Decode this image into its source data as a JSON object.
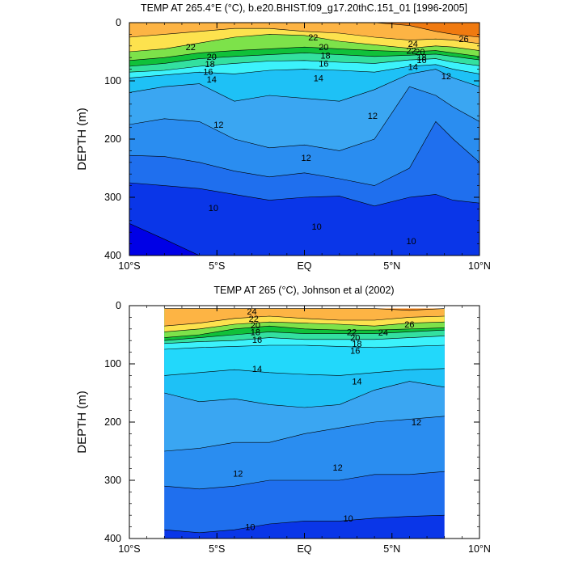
{
  "chart_data": [
    {
      "type": "contour",
      "title": "TEMP AT 265.4°E (°C), b.e20.BHIST.f09_g17.20thC.151_01 [1996-2005]",
      "ylabel": "DEPTH (m)",
      "xlim": [
        -10,
        10
      ],
      "ylim": [
        400,
        0
      ],
      "y_reversed": true,
      "x_ticks": [
        {
          "value": -10,
          "label": "10°S"
        },
        {
          "value": -5,
          "label": "5°S"
        },
        {
          "value": 0,
          "label": "EQ"
        },
        {
          "value": 5,
          "label": "5°N"
        },
        {
          "value": 10,
          "label": "10°N"
        }
      ],
      "y_ticks": [
        {
          "value": 0,
          "label": "0"
        },
        {
          "value": 100,
          "label": "100"
        },
        {
          "value": 200,
          "label": "200"
        },
        {
          "value": 300,
          "label": "300"
        },
        {
          "value": 400,
          "label": "400"
        }
      ],
      "data_x_range": [
        -10,
        10
      ],
      "isotherm_depths": {
        "x": [
          -10,
          -8,
          -6,
          -4,
          -2,
          0,
          2,
          4,
          6,
          7.5,
          8.5,
          10
        ],
        "8": [
          345,
          372,
          400,
          400,
          400,
          400,
          400,
          400,
          400,
          400,
          400,
          400
        ],
        "9": [
          275,
          280,
          285,
          295,
          305,
          300,
          298,
          315,
          300,
          295,
          305,
          310
        ],
        "10": [
          228,
          230,
          240,
          255,
          265,
          258,
          268,
          280,
          250,
          170,
          200,
          240
        ],
        "11": [
          175,
          165,
          170,
          200,
          215,
          210,
          220,
          200,
          110,
          125,
          145,
          170
        ],
        "12": [
          120,
          110,
          105,
          135,
          125,
          130,
          135,
          115,
          88,
          80,
          95,
          110
        ],
        "14": [
          95,
          90,
          85,
          88,
          82,
          80,
          82,
          85,
          75,
          72,
          80,
          88
        ],
        "16": [
          85,
          82,
          75,
          70,
          66,
          65,
          68,
          70,
          64,
          62,
          68,
          74
        ],
        "18": [
          75,
          70,
          62,
          58,
          55,
          52,
          55,
          58,
          56,
          54,
          58,
          64
        ],
        "20": [
          65,
          60,
          52,
          48,
          45,
          42,
          45,
          48,
          50,
          48,
          52,
          58
        ],
        "22": [
          50,
          45,
          35,
          25,
          20,
          22,
          32,
          38,
          44,
          40,
          42,
          48
        ],
        "24": [
          25,
          20,
          15,
          10,
          10,
          15,
          18,
          25,
          30,
          28,
          30,
          36
        ],
        "26": [
          0,
          0,
          0,
          0,
          0,
          0,
          0,
          0,
          5,
          15,
          20,
          25
        ]
      },
      "line_labels": [
        {
          "text": "22",
          "x": -6.5,
          "y": 42
        },
        {
          "text": "20",
          "x": -5.3,
          "y": 58
        },
        {
          "text": "18",
          "x": -5.4,
          "y": 71
        },
        {
          "text": "16",
          "x": -5.5,
          "y": 84
        },
        {
          "text": "14",
          "x": -5.3,
          "y": 97
        },
        {
          "text": "22",
          "x": 0.5,
          "y": 25
        },
        {
          "text": "20",
          "x": 1.1,
          "y": 42
        },
        {
          "text": "18",
          "x": 1.2,
          "y": 56
        },
        {
          "text": "16",
          "x": 1.1,
          "y": 70
        },
        {
          "text": "14",
          "x": 0.8,
          "y": 95
        },
        {
          "text": "24",
          "x": 6.2,
          "y": 36
        },
        {
          "text": "22",
          "x": 6.1,
          "y": 48
        },
        {
          "text": "20",
          "x": 6.6,
          "y": 50
        },
        {
          "text": "18",
          "x": 6.7,
          "y": 59
        },
        {
          "text": "16",
          "x": 6.7,
          "y": 64
        },
        {
          "text": "14",
          "x": 6.2,
          "y": 76
        },
        {
          "text": "26",
          "x": 9.1,
          "y": 28
        },
        {
          "text": "12",
          "x": 8.1,
          "y": 92
        },
        {
          "text": "12",
          "x": -4.9,
          "y": 175
        },
        {
          "text": "12",
          "x": 0.1,
          "y": 232
        },
        {
          "text": "12",
          "x": 3.9,
          "y": 160
        },
        {
          "text": "10",
          "x": -5.2,
          "y": 318
        },
        {
          "text": "10",
          "x": 0.7,
          "y": 350
        },
        {
          "text": "10",
          "x": 6.1,
          "y": 375
        }
      ]
    },
    {
      "type": "contour",
      "title": "TEMP AT 265 (°C), Johnson et al (2002)",
      "ylabel": "DEPTH (m)",
      "xlim": [
        -10,
        10
      ],
      "ylim": [
        400,
        0
      ],
      "y_reversed": true,
      "x_ticks": [
        {
          "value": -10,
          "label": "10°S"
        },
        {
          "value": -5,
          "label": "5°S"
        },
        {
          "value": 0,
          "label": "EQ"
        },
        {
          "value": 5,
          "label": "5°N"
        },
        {
          "value": 10,
          "label": "10°N"
        }
      ],
      "y_ticks": [
        {
          "value": 0,
          "label": "0"
        },
        {
          "value": 100,
          "label": "100"
        },
        {
          "value": 200,
          "label": "200"
        },
        {
          "value": 300,
          "label": "300"
        },
        {
          "value": 400,
          "label": "400"
        }
      ],
      "data_x_range": [
        -8,
        8
      ],
      "data_y_range": [
        5,
        400
      ],
      "isotherm_depths": {
        "x": [
          -8,
          -6,
          -4,
          -2,
          0,
          2,
          4,
          6,
          8
        ],
        "9": [
          385,
          390,
          385,
          375,
          370,
          370,
          365,
          362,
          360
        ],
        "10": [
          310,
          315,
          310,
          300,
          300,
          300,
          290,
          290,
          285
        ],
        "11": [
          250,
          245,
          235,
          235,
          220,
          210,
          200,
          195,
          190
        ],
        "12": [
          150,
          165,
          160,
          170,
          175,
          170,
          145,
          130,
          140
        ],
        "13": [
          120,
          115,
          110,
          115,
          118,
          120,
          115,
          110,
          108
        ],
        "14": [
          75,
          72,
          70,
          68,
          68,
          70,
          72,
          70,
          68
        ],
        "16": [
          65,
          62,
          60,
          55,
          58,
          58,
          58,
          55,
          52
        ],
        "18": [
          60,
          55,
          50,
          45,
          48,
          48,
          48,
          45,
          42
        ],
        "20": [
          55,
          50,
          40,
          35,
          40,
          42,
          42,
          40,
          38
        ],
        "22": [
          45,
          40,
          32,
          28,
          30,
          32,
          35,
          30,
          28
        ],
        "24": [
          35,
          30,
          22,
          18,
          22,
          25,
          25,
          20,
          18
        ],
        "26": [
          5,
          5,
          5,
          5,
          5,
          5,
          5,
          8,
          5
        ]
      },
      "line_labels": [
        {
          "text": "24",
          "x": -3.0,
          "y": 10
        },
        {
          "text": "22",
          "x": -2.9,
          "y": 22
        },
        {
          "text": "20",
          "x": -2.8,
          "y": 33
        },
        {
          "text": "18",
          "x": -2.8,
          "y": 45
        },
        {
          "text": "16",
          "x": -2.7,
          "y": 58
        },
        {
          "text": "22",
          "x": 2.7,
          "y": 45
        },
        {
          "text": "20",
          "x": 2.9,
          "y": 55
        },
        {
          "text": "18",
          "x": 3.0,
          "y": 65
        },
        {
          "text": "16",
          "x": 2.9,
          "y": 77
        },
        {
          "text": "24",
          "x": 4.5,
          "y": 46
        },
        {
          "text": "26",
          "x": 6.0,
          "y": 32
        },
        {
          "text": "14",
          "x": -2.7,
          "y": 108
        },
        {
          "text": "14",
          "x": 3.0,
          "y": 130
        },
        {
          "text": "12",
          "x": 6.4,
          "y": 200
        },
        {
          "text": "12",
          "x": 1.9,
          "y": 278
        },
        {
          "text": "12",
          "x": -3.8,
          "y": 288
        },
        {
          "text": "10",
          "x": 2.5,
          "y": 365
        },
        {
          "text": "10",
          "x": -3.1,
          "y": 380
        }
      ]
    }
  ]
}
